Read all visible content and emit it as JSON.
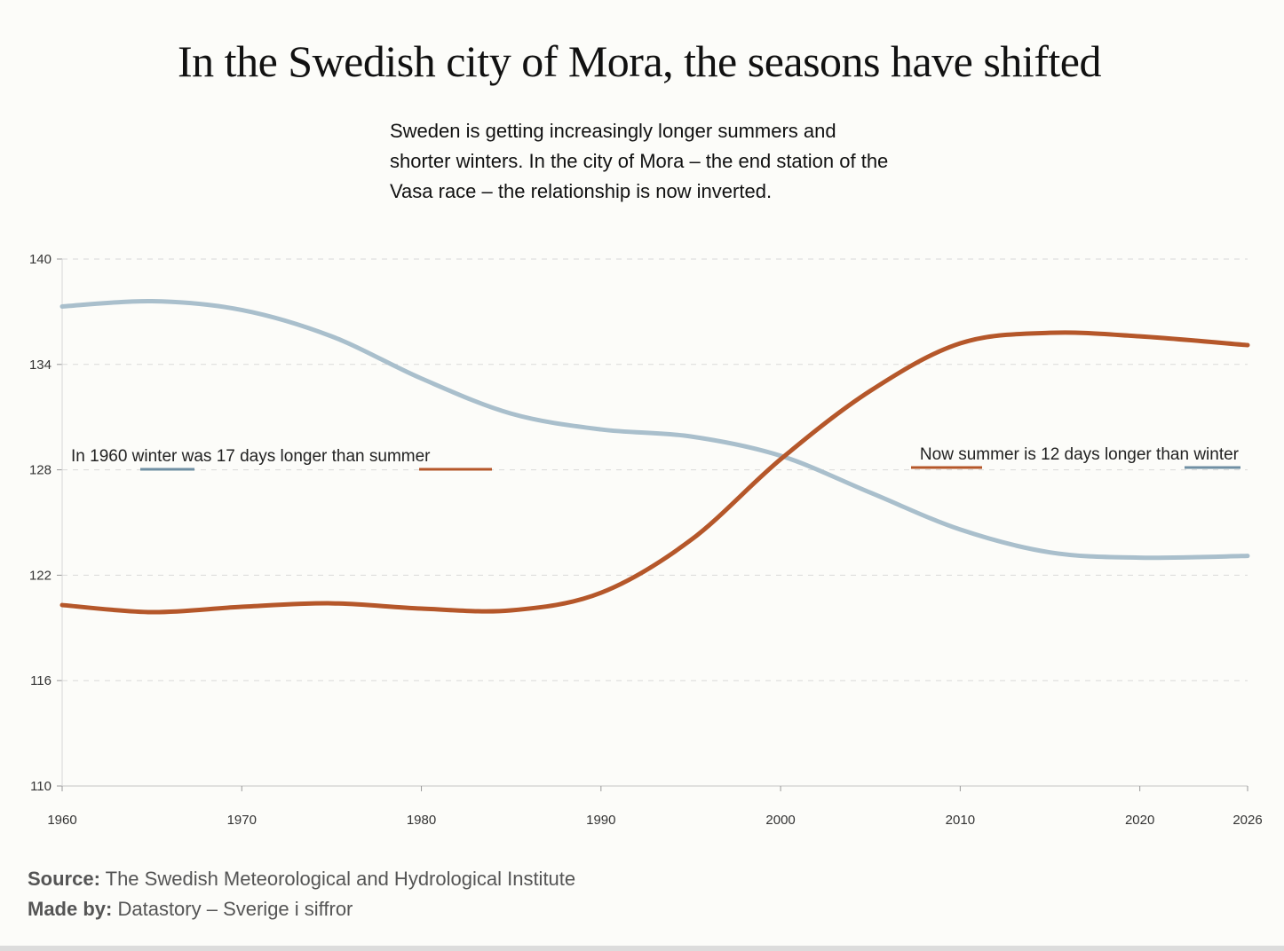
{
  "title": "In the Swedish city of Mora, the seasons have shifted",
  "subtitle": [
    "Sweden is getting increasingly longer summers and",
    "shorter winters. In the city of Mora – the end station of the",
    "Vasa race – the relationship is now inverted."
  ],
  "colors": {
    "winter": "#a9bfcc",
    "winter_legend": "#6f8fa3",
    "summer": "#b5572a",
    "background": "#fcfcf9",
    "grid": "#d9d9d9"
  },
  "annotations": {
    "left": {
      "prefix": "In 1960 ",
      "term1": "winter",
      "middle": " was 17 days longer than ",
      "term2": "summer"
    },
    "right": {
      "prefix": "Now ",
      "term1": "summer",
      "middle": " is 12 days longer than ",
      "term2": "winter"
    }
  },
  "chart_data": {
    "type": "line",
    "title": "",
    "xlabel": "",
    "ylabel": "",
    "xlim": [
      1960,
      2026
    ],
    "ylim": [
      110,
      140
    ],
    "x_ticks": [
      1960,
      1970,
      1980,
      1990,
      2000,
      2010,
      2020,
      2026
    ],
    "y_ticks": [
      110,
      116,
      122,
      128,
      134,
      140
    ],
    "grid": "horizontal dashed",
    "series": [
      {
        "name": "winter",
        "x": [
          1960,
          1965,
          1970,
          1975,
          1980,
          1985,
          1990,
          1995,
          2000,
          2005,
          2010,
          2015,
          2020,
          2026
        ],
        "values": [
          137.3,
          137.6,
          137.1,
          135.6,
          133.2,
          131.2,
          130.3,
          129.9,
          128.8,
          126.7,
          124.6,
          123.3,
          123.0,
          123.1
        ]
      },
      {
        "name": "summer",
        "x": [
          1960,
          1965,
          1970,
          1975,
          1980,
          1985,
          1990,
          1995,
          2000,
          2005,
          2010,
          2015,
          2020,
          2026
        ],
        "values": [
          120.3,
          119.9,
          120.2,
          120.4,
          120.1,
          120.0,
          121.0,
          124.0,
          128.6,
          132.5,
          135.2,
          135.8,
          135.6,
          135.1
        ]
      }
    ]
  },
  "footer": {
    "source_label": "Source:",
    "source_text": " The Swedish Meteorological and Hydrological Institute",
    "madeby_label": "Made by:",
    "madeby_text": " Datastory – Sverige i siffror"
  }
}
